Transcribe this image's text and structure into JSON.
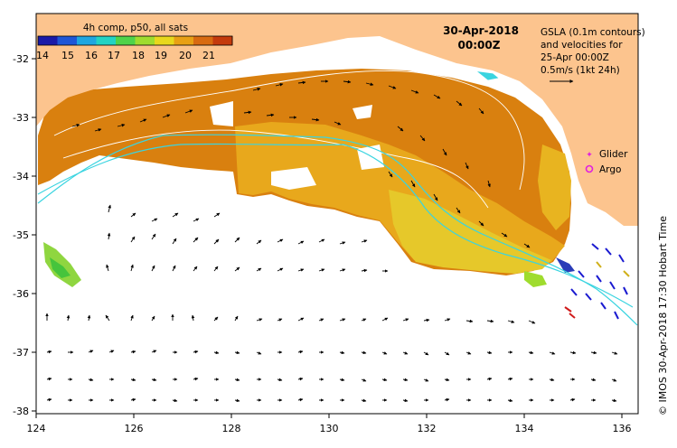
{
  "map": {
    "colorbar": {
      "title": "4h comp, p50, all sats",
      "tick_labels": [
        "14",
        "15",
        "16",
        "17",
        "18",
        "19",
        "20",
        "21"
      ],
      "colors": [
        "#1a1aa8",
        "#1f56d6",
        "#1fa6e0",
        "#22d3c4",
        "#4fd34a",
        "#9fdc2e",
        "#e8d81c",
        "#e8a014",
        "#d86a10",
        "#c43a0c"
      ]
    },
    "timestamp": {
      "date": "30-Apr-2018",
      "time": "00:00Z"
    },
    "gsla_note": {
      "line1": "GSLA (0.1m contours)",
      "line2": "and velocities for",
      "line3": "25-Apr 00:00Z",
      "scale": "0.5m/s (1kt 24h)"
    },
    "legend": {
      "glider": "Glider",
      "argo": "Argo",
      "glider_color": "#e020e0",
      "argo_color": "#e020e0"
    },
    "credit": "© IMOS 30-Apr-2018 17:30 Hobart Time",
    "x_ticks": [
      "124",
      "126",
      "128",
      "130",
      "132",
      "134",
      "136"
    ],
    "y_ticks": [
      "-32",
      "-33",
      "-34",
      "-35",
      "-36",
      "-37",
      "-38"
    ],
    "colors": {
      "land": "#fcc48e",
      "ocean": "#ffffff",
      "sst_warm": "#d8780e",
      "sst_mid": "#e8a818",
      "sst_cool": "#e4c82a",
      "contour": "#ffffff",
      "cyan_line": "#3ad4e0"
    }
  }
}
